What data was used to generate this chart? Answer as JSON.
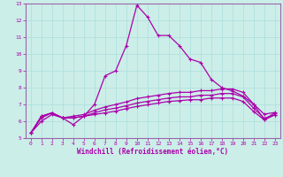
{
  "title": "",
  "xlabel": "Windchill (Refroidissement éolien,°C)",
  "ylabel": "",
  "bg_color": "#cceee8",
  "grid_color": "#aadddd",
  "line_color": "#aa00aa",
  "spine_color": "#9966aa",
  "xlim": [
    -0.5,
    23.5
  ],
  "ylim": [
    5,
    13
  ],
  "xticks": [
    0,
    1,
    2,
    3,
    4,
    5,
    6,
    7,
    8,
    9,
    10,
    11,
    12,
    13,
    14,
    15,
    16,
    17,
    18,
    19,
    20,
    21,
    22,
    23
  ],
  "yticks": [
    5,
    6,
    7,
    8,
    9,
    10,
    11,
    12,
    13
  ],
  "series1_x": [
    0,
    1,
    2,
    3,
    4,
    5,
    6,
    7,
    8,
    9,
    10,
    11,
    12,
    13,
    14,
    15,
    16,
    17,
    18,
    19,
    20,
    21,
    22,
    23
  ],
  "series1_y": [
    5.3,
    6.3,
    6.5,
    6.2,
    5.8,
    6.3,
    7.0,
    8.7,
    9.0,
    10.5,
    12.9,
    12.2,
    11.1,
    11.1,
    10.5,
    9.7,
    9.5,
    8.5,
    8.0,
    7.8,
    7.5,
    7.0,
    6.1,
    6.5
  ],
  "series2_x": [
    0,
    1,
    2,
    3,
    4,
    5,
    6,
    7,
    8,
    9,
    10,
    11,
    12,
    13,
    14,
    15,
    16,
    17,
    18,
    19,
    20,
    21,
    22,
    23
  ],
  "series2_y": [
    5.3,
    6.3,
    6.5,
    6.2,
    6.3,
    6.4,
    6.65,
    6.85,
    7.0,
    7.15,
    7.35,
    7.45,
    7.55,
    7.65,
    7.72,
    7.72,
    7.82,
    7.82,
    7.92,
    7.92,
    7.72,
    7.02,
    6.42,
    6.52
  ],
  "series3_x": [
    0,
    1,
    2,
    3,
    4,
    5,
    6,
    7,
    8,
    9,
    10,
    11,
    12,
    13,
    14,
    15,
    16,
    17,
    18,
    19,
    20,
    21,
    22,
    23
  ],
  "series3_y": [
    5.3,
    6.2,
    6.5,
    6.2,
    6.2,
    6.3,
    6.5,
    6.68,
    6.78,
    6.92,
    7.08,
    7.18,
    7.28,
    7.38,
    7.45,
    7.45,
    7.55,
    7.55,
    7.65,
    7.65,
    7.45,
    6.78,
    6.18,
    6.38
  ],
  "series4_x": [
    0,
    1,
    2,
    3,
    4,
    5,
    6,
    7,
    8,
    9,
    10,
    11,
    12,
    13,
    14,
    15,
    16,
    17,
    18,
    19,
    20,
    21,
    22,
    23
  ],
  "series4_y": [
    5.3,
    6.0,
    6.4,
    6.2,
    6.2,
    6.3,
    6.4,
    6.5,
    6.6,
    6.75,
    6.88,
    6.98,
    7.08,
    7.18,
    7.22,
    7.28,
    7.28,
    7.38,
    7.38,
    7.38,
    7.18,
    6.58,
    6.08,
    6.38
  ]
}
